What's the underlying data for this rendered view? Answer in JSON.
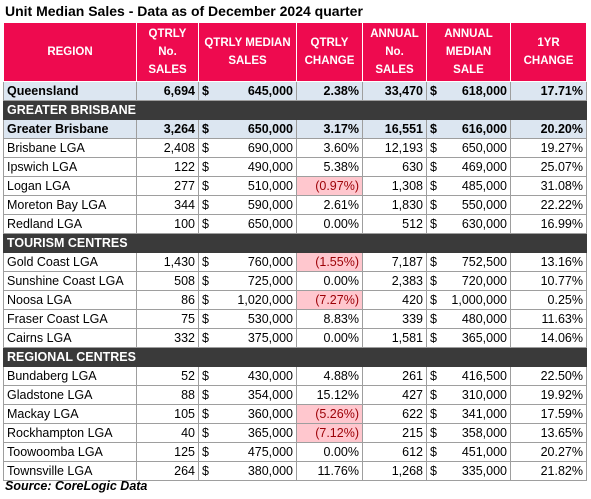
{
  "title": "Unit Median Sales - Data as of December 2024 quarter",
  "headers": {
    "region": "REGION",
    "qtrly_sales": "QTRLY No. SALES",
    "qtrly_median": "QTRLY MEDIAN SALES",
    "qtrly_change": "QTRLY CHANGE",
    "annual_sales": "ANNUAL No. SALES",
    "annual_median": "ANNUAL MEDIAN SALE",
    "yr_change": "1YR CHANGE"
  },
  "colors": {
    "header_bg": "#ee0a4f",
    "section_bg": "#3a3a3a",
    "total_bg": "#dce6f1",
    "negative_bg": "#ffc7ce",
    "negative_text": "#9c0006"
  },
  "rows": [
    {
      "type": "total",
      "region": "Queensland",
      "qtrly_sales": "6,694",
      "qtrly_median": "645,000",
      "qtrly_change": "2.38%",
      "qtrly_negative": false,
      "annual_sales": "33,470",
      "annual_median": "618,000",
      "yr_change": "17.71%"
    },
    {
      "type": "section",
      "region": "GREATER BRISBANE"
    },
    {
      "type": "total",
      "region": "Greater Brisbane",
      "qtrly_sales": "3,264",
      "qtrly_median": "650,000",
      "qtrly_change": "3.17%",
      "qtrly_negative": false,
      "annual_sales": "16,551",
      "annual_median": "616,000",
      "yr_change": "20.20%"
    },
    {
      "type": "data",
      "region": "Brisbane LGA",
      "qtrly_sales": "2,408",
      "qtrly_median": "690,000",
      "qtrly_change": "3.60%",
      "qtrly_negative": false,
      "annual_sales": "12,193",
      "annual_median": "650,000",
      "yr_change": "19.27%"
    },
    {
      "type": "data",
      "region": "Ipswich LGA",
      "qtrly_sales": "122",
      "qtrly_median": "490,000",
      "qtrly_change": "5.38%",
      "qtrly_negative": false,
      "annual_sales": "630",
      "annual_median": "469,000",
      "yr_change": "25.07%"
    },
    {
      "type": "data",
      "region": "Logan LGA",
      "qtrly_sales": "277",
      "qtrly_median": "510,000",
      "qtrly_change": "(0.97%)",
      "qtrly_negative": true,
      "annual_sales": "1,308",
      "annual_median": "485,000",
      "yr_change": "31.08%"
    },
    {
      "type": "data",
      "region": "Moreton Bay LGA",
      "qtrly_sales": "344",
      "qtrly_median": "590,000",
      "qtrly_change": "2.61%",
      "qtrly_negative": false,
      "annual_sales": "1,830",
      "annual_median": "550,000",
      "yr_change": "22.22%"
    },
    {
      "type": "data",
      "region": "Redland LGA",
      "qtrly_sales": "100",
      "qtrly_median": "650,000",
      "qtrly_change": "0.00%",
      "qtrly_negative": false,
      "annual_sales": "512",
      "annual_median": "630,000",
      "yr_change": "16.99%"
    },
    {
      "type": "section",
      "region": "TOURISM CENTRES"
    },
    {
      "type": "data",
      "region": "Gold Coast LGA",
      "qtrly_sales": "1,430",
      "qtrly_median": "760,000",
      "qtrly_change": "(1.55%)",
      "qtrly_negative": true,
      "annual_sales": "7,187",
      "annual_median": "752,500",
      "yr_change": "13.16%"
    },
    {
      "type": "data",
      "region": "Sunshine Coast LGA",
      "qtrly_sales": "508",
      "qtrly_median": "725,000",
      "qtrly_change": "0.00%",
      "qtrly_negative": false,
      "annual_sales": "2,383",
      "annual_median": "720,000",
      "yr_change": "10.77%"
    },
    {
      "type": "data",
      "region": "Noosa LGA",
      "qtrly_sales": "86",
      "qtrly_median": "1,020,000",
      "qtrly_change": "(7.27%)",
      "qtrly_negative": true,
      "annual_sales": "420",
      "annual_median": "1,000,000",
      "yr_change": "0.25%"
    },
    {
      "type": "data",
      "region": "Fraser Coast LGA",
      "qtrly_sales": "75",
      "qtrly_median": "530,000",
      "qtrly_change": "8.83%",
      "qtrly_negative": false,
      "annual_sales": "339",
      "annual_median": "480,000",
      "yr_change": "11.63%"
    },
    {
      "type": "data",
      "region": "Cairns LGA",
      "qtrly_sales": "332",
      "qtrly_median": "375,000",
      "qtrly_change": "0.00%",
      "qtrly_negative": false,
      "annual_sales": "1,581",
      "annual_median": "365,000",
      "yr_change": "14.06%"
    },
    {
      "type": "section",
      "region": "REGIONAL CENTRES"
    },
    {
      "type": "data",
      "region": "Bundaberg LGA",
      "qtrly_sales": "52",
      "qtrly_median": "430,000",
      "qtrly_change": "4.88%",
      "qtrly_negative": false,
      "annual_sales": "261",
      "annual_median": "416,500",
      "yr_change": "22.50%"
    },
    {
      "type": "data",
      "region": "Gladstone LGA",
      "qtrly_sales": "88",
      "qtrly_median": "354,000",
      "qtrly_change": "15.12%",
      "qtrly_negative": false,
      "annual_sales": "427",
      "annual_median": "310,000",
      "yr_change": "19.92%"
    },
    {
      "type": "data",
      "region": "Mackay LGA",
      "qtrly_sales": "105",
      "qtrly_median": "360,000",
      "qtrly_change": "(5.26%)",
      "qtrly_negative": true,
      "annual_sales": "622",
      "annual_median": "341,000",
      "yr_change": "17.59%"
    },
    {
      "type": "data",
      "region": "Rockhampton LGA",
      "qtrly_sales": "40",
      "qtrly_median": "365,000",
      "qtrly_change": "(7.12%)",
      "qtrly_negative": true,
      "annual_sales": "215",
      "annual_median": "358,000",
      "yr_change": "13.65%"
    },
    {
      "type": "data",
      "region": "Toowoomba LGA",
      "qtrly_sales": "125",
      "qtrly_median": "475,000",
      "qtrly_change": "0.00%",
      "qtrly_negative": false,
      "annual_sales": "612",
      "annual_median": "451,000",
      "yr_change": "20.27%"
    },
    {
      "type": "data",
      "region": "Townsville LGA",
      "qtrly_sales": "264",
      "qtrly_median": "380,000",
      "qtrly_change": "11.76%",
      "qtrly_negative": false,
      "annual_sales": "1,268",
      "annual_median": "335,000",
      "yr_change": "21.82%"
    }
  ],
  "currency_symbol": "$",
  "source": "Source: CoreLogic Data"
}
